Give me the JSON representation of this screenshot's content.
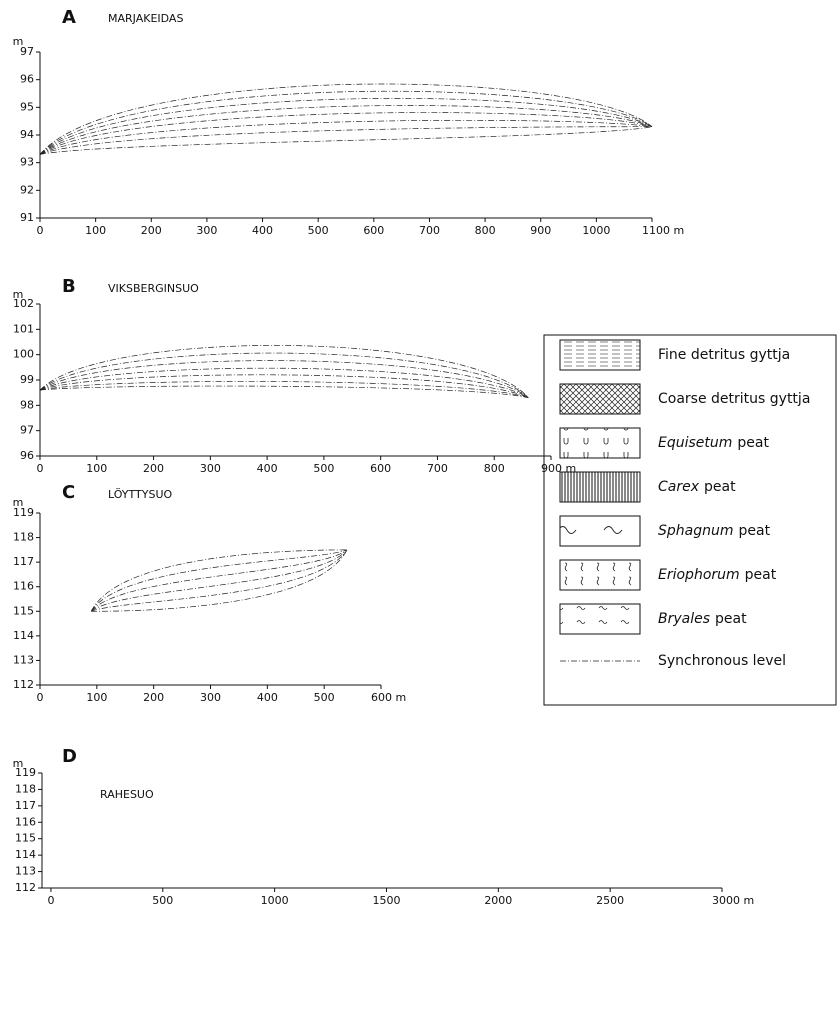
{
  "panels": [
    {
      "letter": "A",
      "name": "MARJAKEIDAS",
      "y_unit": "m",
      "xlim": [
        0,
        1100
      ],
      "ylim": [
        91,
        97
      ],
      "xticks": [
        0,
        100,
        200,
        300,
        400,
        500,
        600,
        700,
        800,
        900,
        1000,
        {
          "value": 1100,
          "label": "1100 m"
        }
      ],
      "yticks": [
        91,
        92,
        93,
        94,
        95,
        96,
        97
      ]
    },
    {
      "letter": "B",
      "name": "VIKSBERGINSUO",
      "y_unit": "m",
      "xlim": [
        0,
        900
      ],
      "ylim": [
        96,
        102
      ],
      "xticks": [
        0,
        100,
        200,
        300,
        400,
        500,
        600,
        700,
        800,
        {
          "value": 900,
          "label": "900 m"
        }
      ],
      "yticks": [
        96,
        97,
        98,
        99,
        100,
        101,
        102
      ]
    },
    {
      "letter": "C",
      "name": "LÖYTTYSUO",
      "y_unit": "m",
      "xlim": [
        0,
        600
      ],
      "ylim": [
        112,
        119
      ],
      "xticks": [
        0,
        100,
        200,
        300,
        400,
        500,
        {
          "value": 600,
          "label": "600 m"
        }
      ],
      "yticks": [
        112,
        113,
        114,
        115,
        116,
        117,
        118,
        119
      ]
    },
    {
      "letter": "D",
      "name": "RAHESUO",
      "y_unit": "m",
      "xlim": [
        -40,
        3000
      ],
      "ylim": [
        112,
        119
      ],
      "xticks": [
        0,
        500,
        1000,
        1500,
        2000,
        2500,
        {
          "value": 3000,
          "label": "3000 m"
        }
      ],
      "yticks": [
        112,
        113,
        114,
        115,
        116,
        117,
        118,
        119
      ]
    }
  ],
  "legend": {
    "items": [
      {
        "text": "Fine detritus gyttja"
      },
      {
        "text": "Coarse detritus gyttja"
      },
      {
        "genus": "Equisetum",
        "text": "peat"
      },
      {
        "genus": "Carex",
        "text": "peat"
      },
      {
        "genus": "Sphagnum",
        "text": "peat"
      },
      {
        "genus": "Eriophorum",
        "text": "peat"
      },
      {
        "genus": "Bryales",
        "text": "peat"
      },
      {
        "text": "Synchronous level"
      }
    ]
  }
}
